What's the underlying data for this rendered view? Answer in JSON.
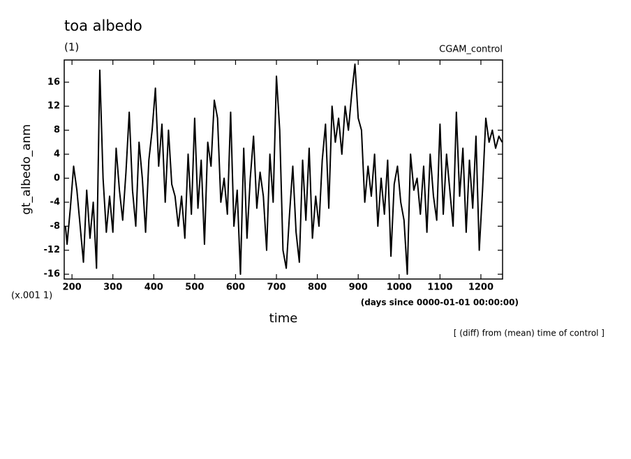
{
  "chart_data": {
    "type": "line",
    "title": "toa albedo",
    "subtitle": "(1)",
    "dataset": "CGAM_control",
    "ylabel": "gt_albedo_anm",
    "yscale_note": "(x.001 1)",
    "xlabel": "time",
    "xunits": "(days since 0000-01-01 00:00:00)",
    "note": "[ (diff) from (mean) time of control ]",
    "color": "#000000",
    "xlim": [
      181,
      1253
    ],
    "ylim": [
      -16.8,
      19.7
    ],
    "xticks": [
      200,
      300,
      400,
      500,
      600,
      700,
      800,
      900,
      1000,
      1100,
      1200
    ],
    "yticks": [
      -16,
      -12,
      -8,
      -4,
      0,
      4,
      8,
      12,
      16
    ],
    "x": [
      184,
      188,
      196,
      204,
      212,
      220,
      228,
      236,
      244,
      252,
      260,
      268,
      276,
      284,
      292,
      300,
      308,
      316,
      324,
      332,
      340,
      348,
      356,
      364,
      372,
      380,
      388,
      396,
      404,
      412,
      420,
      428,
      436,
      444,
      452,
      460,
      468,
      476,
      484,
      492,
      500,
      508,
      516,
      524,
      532,
      540,
      548,
      556,
      564,
      572,
      580,
      588,
      596,
      604,
      612,
      620,
      628,
      636,
      644,
      652,
      660,
      668,
      676,
      684,
      692,
      700,
      708,
      716,
      724,
      732,
      740,
      748,
      756,
      764,
      772,
      780,
      788,
      796,
      804,
      812,
      820,
      828,
      836,
      844,
      852,
      860,
      868,
      876,
      884,
      892,
      900,
      908,
      916,
      924,
      932,
      940,
      948,
      956,
      964,
      972,
      980,
      988,
      996,
      1004,
      1012,
      1020,
      1028,
      1036,
      1044,
      1052,
      1060,
      1068,
      1076,
      1084,
      1092,
      1100,
      1108,
      1116,
      1124,
      1132,
      1140,
      1148,
      1156,
      1164,
      1172,
      1180,
      1188,
      1196,
      1204,
      1212,
      1220,
      1228,
      1236,
      1244,
      1252
    ],
    "values": [
      -8,
      -11,
      -5,
      2,
      -2,
      -8,
      -14,
      -2,
      -10,
      -4,
      -15,
      18,
      0,
      -9,
      -3,
      -9,
      5,
      -2,
      -7,
      1,
      11,
      -2,
      -8,
      6,
      0,
      -9,
      3,
      8,
      15,
      2,
      9,
      -4,
      8,
      -1,
      -3,
      -8,
      -3,
      -10,
      4,
      -6,
      10,
      -5,
      3,
      -11,
      6,
      2,
      13,
      10,
      -4,
      0,
      -6,
      11,
      -8,
      -2,
      -16,
      5,
      -10,
      0,
      7,
      -5,
      1,
      -3,
      -12,
      4,
      -4,
      17,
      8,
      -12,
      -15,
      -6,
      2,
      -9,
      -14,
      3,
      -7,
      5,
      -10,
      -3,
      -8,
      3,
      9,
      -5,
      12,
      6,
      10,
      4,
      12,
      8,
      14,
      19,
      10,
      8,
      -4,
      2,
      -3,
      4,
      -8,
      0,
      -6,
      3,
      -13,
      -1,
      2,
      -4,
      -7,
      -16,
      4,
      -2,
      0,
      -6,
      2,
      -9,
      4,
      -3,
      -7,
      9,
      -6,
      4,
      -2,
      -8,
      11,
      -3,
      5,
      -9,
      3,
      -5,
      7,
      -12,
      -2,
      10,
      6,
      8,
      5,
      7,
      6
    ]
  }
}
